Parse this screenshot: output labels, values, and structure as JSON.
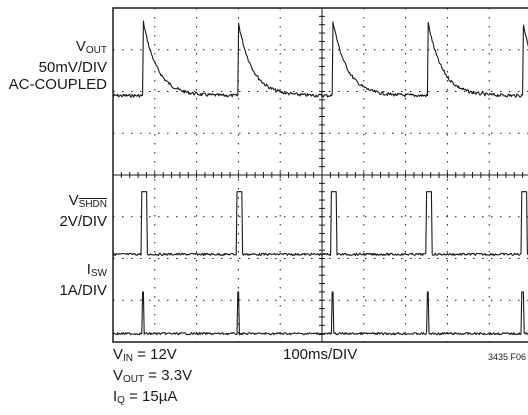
{
  "chart_data": {
    "type": "line",
    "time_per_div": "100ms/DIV",
    "grid": true,
    "grid_divisions": {
      "x": 10,
      "y": 8
    },
    "channels": [
      {
        "name_main": "V",
        "name_sub": "OUT",
        "scale": "50mV/DIV",
        "coupling": "AC-COUPLED",
        "waveform": "sawtooth spike with exponential decay",
        "peak_divisions": 1.8
      },
      {
        "name_main": "V",
        "name_sub": "SHDN",
        "scale": "2V/DIV",
        "waveform": "narrow pulse",
        "peak_divisions": 1.5
      },
      {
        "name_main": "I",
        "name_sub": "SW",
        "scale": "1A/DIV",
        "waveform": "narrow spike",
        "peak_divisions": 1.0
      }
    ],
    "period_divisions": 2.27,
    "first_event_division": 0.72
  },
  "conditions": {
    "vin": {
      "main": "V",
      "sub": "IN",
      "value": " = 12V"
    },
    "vout": {
      "main": "V",
      "sub": "OUT",
      "value": " = 3.3V"
    },
    "iq": {
      "main": "I",
      "sub": "Q",
      "value": " = 15µA"
    }
  },
  "figure_id": "3435 F06",
  "colors": {
    "trace": "#1a1a1a",
    "grid": "#1a1a1a",
    "background": "#ffffff"
  }
}
